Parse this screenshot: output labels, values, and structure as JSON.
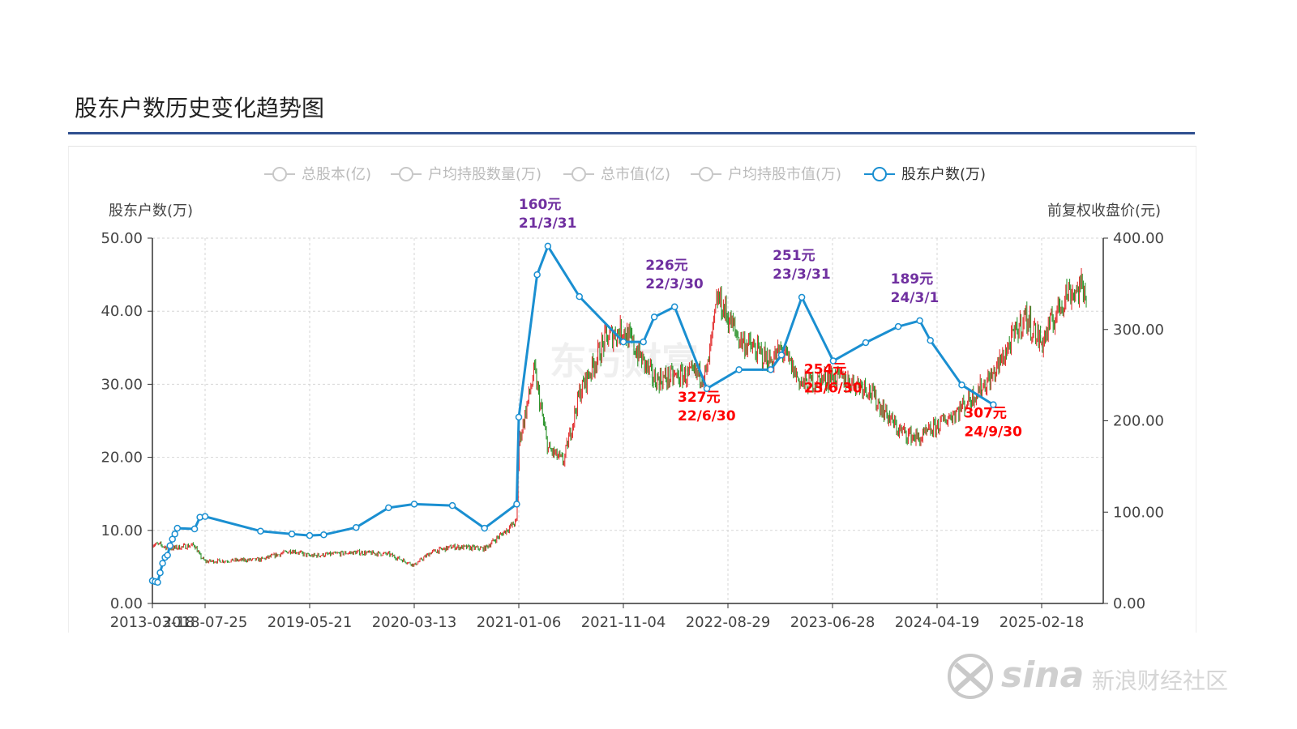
{
  "page": {
    "title": "股东户数历史变化趋势图"
  },
  "watermark": {
    "center": "东方财富",
    "bottom_right": "新浪财经社区",
    "brand": "sina"
  },
  "colors": {
    "holders_line": "#1a8fd1",
    "price_up": "#e02020",
    "price_down": "#1a8a1a",
    "annotation_purple": "#7030a0",
    "annotation_red": "#ff0000",
    "legend_inactive": "#c8c8c8",
    "title_rule": "#2f4f8f"
  },
  "legend": [
    {
      "label": "总股本(亿)",
      "active": false,
      "icon": "circle-line-icon"
    },
    {
      "label": "户均持股数量(万)",
      "active": false,
      "icon": "circle-line-icon"
    },
    {
      "label": "总市值(亿)",
      "active": false,
      "icon": "circle-line-icon"
    },
    {
      "label": "户均持股市值(万)",
      "active": false,
      "icon": "circle-line-icon"
    },
    {
      "label": "股东户数(万)",
      "active": true,
      "icon": "circle-line-icon"
    }
  ],
  "chart_data": {
    "type": "line",
    "title": "股东户数历史变化趋势图",
    "y_left": {
      "label": "股东户数(万)",
      "range": [
        0,
        50
      ],
      "ticks": [
        "0.00",
        "10.00",
        "20.00",
        "30.00",
        "40.00",
        "50.00"
      ]
    },
    "y_right": {
      "label": "前复权收盘价(元)",
      "range": [
        0,
        400
      ],
      "ticks": [
        "0.00",
        "100.00",
        "200.00",
        "300.00",
        "400.00"
      ]
    },
    "x_axis": {
      "type": "category",
      "tick_labels": [
        "2013-03-18",
        "2018-07-25",
        "2019-05-21",
        "2020-03-13",
        "2021-01-06",
        "2021-11-04",
        "2022-08-29",
        "2023-06-28",
        "2024-04-19",
        "2025-02-18"
      ]
    },
    "grid": true,
    "legend_position": "top-center",
    "series": [
      {
        "name": "股东户数(万)",
        "axis": "left",
        "points": [
          [
            "2013-03-18",
            3.1
          ],
          [
            "2013-06-30",
            3.0
          ],
          [
            "2013-09-30",
            2.9
          ],
          [
            "2013-12-31",
            4.2
          ],
          [
            "2014-03-31",
            5.5
          ],
          [
            "2014-06-30",
            6.3
          ],
          [
            "2014-09-30",
            6.6
          ],
          [
            "2014-12-31",
            7.9
          ],
          [
            "2015-03-31",
            8.8
          ],
          [
            "2015-06-30",
            9.5
          ],
          [
            "2015-09-30",
            10.3
          ],
          [
            "2017-06-30",
            10.2
          ],
          [
            "2018-01-15",
            11.8
          ],
          [
            "2018-07-25",
            11.9
          ],
          [
            "2018-12-31",
            9.9
          ],
          [
            "2019-03-31",
            9.5
          ],
          [
            "2019-05-21",
            9.3
          ],
          [
            "2019-06-30",
            9.4
          ],
          [
            "2019-09-30",
            10.4
          ],
          [
            "2019-12-31",
            13.1
          ],
          [
            "2020-03-13",
            13.6
          ],
          [
            "2020-06-30",
            13.4
          ],
          [
            "2020-09-30",
            10.3
          ],
          [
            "2020-12-31",
            13.6
          ],
          [
            "2021-01-06",
            25.5
          ],
          [
            "2021-02-28",
            45.0
          ],
          [
            "2021-03-31",
            48.9
          ],
          [
            "2021-06-30",
            42.0
          ],
          [
            "2021-11-04",
            35.8
          ],
          [
            "2021-12-31",
            35.8
          ],
          [
            "2022-01-31",
            39.2
          ],
          [
            "2022-03-30",
            40.6
          ],
          [
            "2022-06-30",
            29.4
          ],
          [
            "2022-09-30",
            32.0
          ],
          [
            "2022-12-31",
            32.0
          ],
          [
            "2023-01-31",
            34.0
          ],
          [
            "2023-03-31",
            41.9
          ],
          [
            "2023-06-30",
            33.2
          ],
          [
            "2023-09-30",
            35.7
          ],
          [
            "2023-12-31",
            37.9
          ],
          [
            "2024-03-01",
            38.7
          ],
          [
            "2024-03-31",
            36.0
          ],
          [
            "2024-06-30",
            29.9
          ],
          [
            "2024-09-30",
            27.2
          ]
        ]
      },
      {
        "name": "前复权收盘价(元)",
        "axis": "right",
        "style": "candlestick",
        "approx_path": [
          [
            "2013-03-18",
            65
          ],
          [
            "2014-01-01",
            64
          ],
          [
            "2015-01-01",
            60
          ],
          [
            "2017-06-30",
            64
          ],
          [
            "2018-01-15",
            52
          ],
          [
            "2018-07-25",
            46
          ],
          [
            "2018-12-31",
            48
          ],
          [
            "2019-03-31",
            58
          ],
          [
            "2019-05-21",
            52
          ],
          [
            "2019-09-30",
            56
          ],
          [
            "2019-12-31",
            54
          ],
          [
            "2020-03-13",
            42
          ],
          [
            "2020-04-30",
            56
          ],
          [
            "2020-06-30",
            62
          ],
          [
            "2020-09-30",
            60
          ],
          [
            "2020-12-31",
            90
          ],
          [
            "2021-01-06",
            175
          ],
          [
            "2021-02-20",
            255
          ],
          [
            "2021-03-31",
            170
          ],
          [
            "2021-05-15",
            155
          ],
          [
            "2021-06-30",
            230
          ],
          [
            "2021-09-15",
            290
          ],
          [
            "2021-11-04",
            300
          ],
          [
            "2022-01-31",
            245
          ],
          [
            "2022-03-30",
            248
          ],
          [
            "2022-06-30",
            252
          ],
          [
            "2022-07-31",
            335
          ],
          [
            "2022-09-30",
            290
          ],
          [
            "2022-12-31",
            265
          ],
          [
            "2023-01-31",
            278
          ],
          [
            "2023-03-31",
            240
          ],
          [
            "2023-06-30",
            248
          ],
          [
            "2023-09-30",
            238
          ],
          [
            "2023-12-31",
            190
          ],
          [
            "2024-03-01",
            180
          ],
          [
            "2024-06-30",
            215
          ],
          [
            "2024-09-30",
            250
          ],
          [
            "2024-12-31",
            315
          ],
          [
            "2025-02-18",
            285
          ],
          [
            "2025-05-01",
            340
          ],
          [
            "2025-06-30",
            345
          ]
        ]
      }
    ],
    "annotations": [
      {
        "line1": "160元",
        "line2": "21/3/31",
        "color": "purple",
        "at": "2021-03-31",
        "position": "above"
      },
      {
        "line1": "226元",
        "line2": "22/3/30",
        "color": "purple",
        "at": "2022-03-30",
        "position": "above"
      },
      {
        "line1": "251元",
        "line2": "23/3/31",
        "color": "purple",
        "at": "2023-03-31",
        "position": "above"
      },
      {
        "line1": "189元",
        "line2": "24/3/1",
        "color": "purple",
        "at": "2024-03-01",
        "position": "above"
      },
      {
        "line1": "327元",
        "line2": "22/6/30",
        "color": "red",
        "at": "2022-06-30",
        "position": "below"
      },
      {
        "line1": "254元",
        "line2": "23/6/30",
        "color": "red",
        "at": "2023-06-30",
        "position": "below"
      },
      {
        "line1": "307元",
        "line2": "24/9/30",
        "color": "red",
        "at": "2024-09-30",
        "position": "below"
      }
    ]
  }
}
